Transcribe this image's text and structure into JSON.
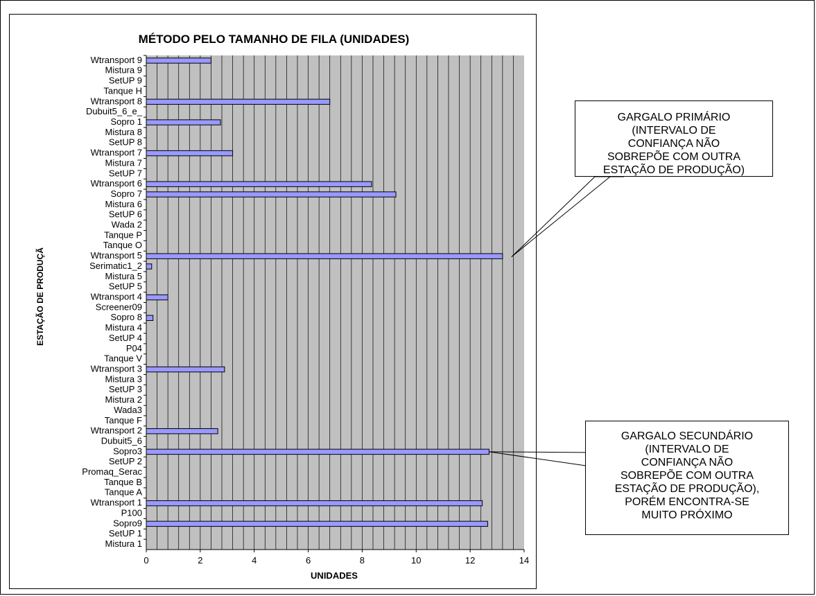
{
  "chart_data": {
    "type": "bar",
    "orientation": "horizontal",
    "title": "MÉTODO PELO TAMANHO DE FILA (UNIDADES)",
    "xlabel": "UNIDADES",
    "ylabel": "ESTAÇÃO DE PRODUÇÃ",
    "xlim": [
      0,
      14
    ],
    "xticks": [
      "0",
      "2",
      "4",
      "6",
      "8",
      "10",
      "12",
      "14"
    ],
    "grid": "vertical gridlines",
    "plot_background": "#c0c0c0",
    "bar_color": "#9999ff",
    "categories": [
      "Wtransport 9",
      "Mistura 9",
      "SetUP 9",
      "Tanque H",
      "Wtransport 8",
      "Dubuit5_6_e_",
      "Sopro 1",
      "Mistura 8",
      "SetUP 8",
      "Wtransport 7",
      "Mistura 7",
      "SetUP 7",
      "Wtransport 6",
      "Sopro 7",
      "Mistura 6",
      "SetUP 6",
      "Wada 2",
      "Tanque P",
      "Tanque O",
      "Wtransport 5",
      "Serimatic1_2",
      "Mistura 5",
      "SetUP 5",
      "Wtransport 4",
      "Screener09",
      "Sopro 8",
      "Mistura 4",
      "SetUP 4",
      "P04",
      "Tanque V",
      "Wtransport 3",
      "Mistura 3",
      "SetUP 3",
      "Mistura 2",
      "Wada3",
      "Tanque F",
      "Wtransport 2",
      "Dubuit5_6",
      "Sopro3",
      "SetUP 2",
      "Promaq_Serac",
      "Tanque B",
      "Tanque A",
      "Wtransport 1",
      "P100",
      "Sopro9",
      "SetUP 1",
      "Mistura 1"
    ],
    "values": [
      2.4,
      0,
      0,
      0,
      6.8,
      0,
      2.75,
      0,
      0,
      3.2,
      0,
      0,
      8.35,
      9.25,
      0,
      0,
      0,
      0,
      0,
      13.2,
      0.2,
      0,
      0,
      0.8,
      0,
      0.25,
      0,
      0,
      0,
      0,
      2.9,
      0,
      0,
      0,
      0,
      0,
      2.65,
      0,
      12.7,
      0,
      0,
      0,
      0,
      12.45,
      0,
      12.65,
      0,
      0
    ]
  },
  "annotations": {
    "primary": {
      "lines": [
        "GARGALO PRIMÁRIO",
        "(INTERVALO DE",
        "CONFIANÇA NÃO",
        "SOBREPÕE COM OUTRA",
        "ESTAÇÃO DE PRODUÇÃO)"
      ],
      "points_to": "Wtransport 5"
    },
    "secondary": {
      "lines": [
        "GARGALO SECUNDÁRIO",
        "(INTERVALO DE",
        "CONFIANÇA NÃO",
        "SOBREPÕE COM OUTRA",
        "ESTAÇÃO DE PRODUÇÃO),",
        "PORÉM ENCONTRA-SE",
        "MUITO PRÓXIMO"
      ],
      "points_to": "Sopro3"
    }
  }
}
